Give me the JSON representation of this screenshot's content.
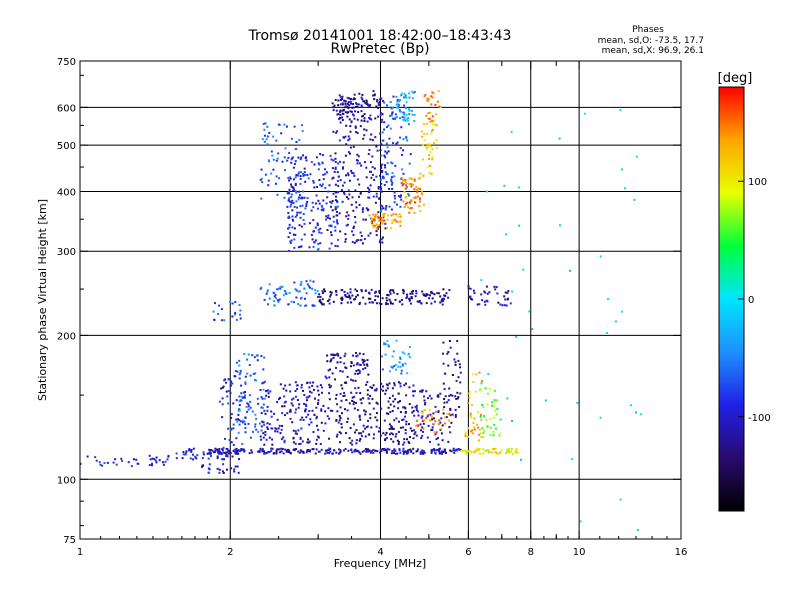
{
  "chart_data": {
    "type": "scatter",
    "title": "Tromsø 20141001 18:42:00–18:43:43",
    "subtitle": "RwPretec (Bp)",
    "xlabel": "Frequency [MHz]",
    "ylabel": "Stationary phase Virtual Height [km]",
    "x_scale": "log",
    "y_scale": "log",
    "xlim": [
      1,
      16
    ],
    "ylim": [
      75,
      750
    ],
    "x_ticks": [
      1,
      2,
      4,
      6,
      8,
      10,
      16
    ],
    "x_tick_labels": [
      "1",
      "2",
      "4",
      "6",
      "8",
      "10",
      "16"
    ],
    "x_grid": [
      2,
      4,
      6,
      8,
      10
    ],
    "x_minor": [
      3,
      5,
      7,
      9
    ],
    "y_ticks": [
      75,
      100,
      200,
      300,
      400,
      500,
      600,
      750
    ],
    "y_tick_labels": [
      "75",
      "100",
      "200",
      "300",
      "400",
      "500",
      "600",
      "750"
    ],
    "y_grid": [
      100,
      200,
      300,
      400,
      500,
      600
    ],
    "grid": true,
    "stats": {
      "heading": "Phases",
      "line_o": "mean, sd,O:  -73.5, 17.7",
      "line_x": "mean, sd,X:   96.9, 26.1"
    },
    "colorbar": {
      "label": "[deg]",
      "range": [
        -180,
        180
      ],
      "ticks": [
        100,
        0,
        -100
      ],
      "tick_labels": [
        "100",
        "0",
        "-100"
      ],
      "colormap": [
        "#000000",
        "#2a0a6e",
        "#1f20e6",
        "#1e90ff",
        "#00e5ff",
        "#00ff3a",
        "#e8ff00",
        "#ffa500",
        "#ff0000"
      ]
    },
    "series": [
      {
        "name": "",
        "points_note": "",
        "clusters": [
          {
            "f": [
              1.0,
              1.5
            ],
            "h": [
              106,
              112
            ],
            "n": 35,
            "phase": -90
          },
          {
            "f": [
              1.5,
              2.1
            ],
            "h": [
              110,
              116
            ],
            "n": 50,
            "phase": -100
          },
          {
            "f": [
              1.8,
              5.8
            ],
            "h": [
              113,
              116
            ],
            "n": 260,
            "phase": -110
          },
          {
            "f": [
              5.8,
              7.6
            ],
            "h": [
              113,
              116
            ],
            "n": 60,
            "phase": 100
          },
          {
            "f": [
              1.75,
              2.1
            ],
            "h": [
              103,
              108
            ],
            "n": 22,
            "phase": -100
          },
          {
            "f": [
              1.9,
              2.2
            ],
            "h": [
              115,
              165
            ],
            "n": 70,
            "phase": -90
          },
          {
            "f": [
              2.05,
              2.35
            ],
            "h": [
              125,
              185
            ],
            "n": 70,
            "phase": -60
          },
          {
            "f": [
              2.3,
              3.1
            ],
            "h": [
              118,
              160
            ],
            "n": 170,
            "phase": -110
          },
          {
            "f": [
              3.1,
              3.8
            ],
            "h": [
              118,
              185
            ],
            "n": 170,
            "phase": -120
          },
          {
            "f": [
              3.8,
              4.7
            ],
            "h": [
              118,
              160
            ],
            "n": 130,
            "phase": -120
          },
          {
            "f": [
              4.7,
              5.6
            ],
            "h": [
              118,
              155
            ],
            "n": 70,
            "phase": -115
          },
          {
            "f": [
              5.3,
              5.8
            ],
            "h": [
              135,
              195
            ],
            "n": 45,
            "phase": -125
          },
          {
            "f": [
              4.0,
              4.6
            ],
            "h": [
              165,
              195
            ],
            "n": 35,
            "phase": -40
          },
          {
            "f": [
              4.7,
              5.5
            ],
            "h": [
              125,
              140
            ],
            "n": 30,
            "phase": 140
          },
          {
            "f": [
              5.9,
              6.4
            ],
            "h": [
              120,
              170
            ],
            "n": 35,
            "phase": 120
          },
          {
            "f": [
              6.3,
              7.0
            ],
            "h": [
              120,
              160
            ],
            "n": 40,
            "phase": 70
          },
          {
            "f": [
              1.85,
              2.1
            ],
            "h": [
              215,
              235
            ],
            "n": 20,
            "phase": -70
          },
          {
            "f": [
              2.3,
              3.0
            ],
            "h": [
              230,
              262
            ],
            "n": 70,
            "phase": -60
          },
          {
            "f": [
              3.0,
              5.5
            ],
            "h": [
              232,
              250
            ],
            "n": 160,
            "phase": -125
          },
          {
            "f": [
              6.0,
              7.3
            ],
            "h": [
              230,
              255
            ],
            "n": 40,
            "phase": -110
          },
          {
            "f": [
              2.3,
              2.8
            ],
            "h": [
              380,
              560
            ],
            "n": 70,
            "phase": -70
          },
          {
            "f": [
              2.6,
              3.3
            ],
            "h": [
              300,
              480
            ],
            "n": 220,
            "phase": -90
          },
          {
            "f": [
              3.2,
              4.1
            ],
            "h": [
              310,
              640
            ],
            "n": 260,
            "phase": -110
          },
          {
            "f": [
              3.3,
              4.0
            ],
            "h": [
              560,
              650
            ],
            "n": 70,
            "phase": -125
          },
          {
            "f": [
              4.0,
              4.6
            ],
            "h": [
              360,
              640
            ],
            "n": 110,
            "phase": -70
          },
          {
            "f": [
              4.3,
              4.7
            ],
            "h": [
              560,
              650
            ],
            "n": 40,
            "phase": -30
          },
          {
            "f": [
              3.8,
              4.4
            ],
            "h": [
              335,
              360
            ],
            "n": 55,
            "phase": 140
          },
          {
            "f": [
              4.4,
              4.9
            ],
            "h": [
              360,
              430
            ],
            "n": 60,
            "phase": 140
          },
          {
            "f": [
              4.8,
              5.2
            ],
            "h": [
              430,
              560
            ],
            "n": 40,
            "phase": 110
          },
          {
            "f": [
              4.9,
              5.3
            ],
            "h": [
              560,
              650
            ],
            "n": 25,
            "phase": 135
          },
          {
            "f": [
              6.0,
              13.5
            ],
            "h": [
              78,
              600
            ],
            "n": 40,
            "phase": 0
          }
        ]
      }
    ]
  }
}
